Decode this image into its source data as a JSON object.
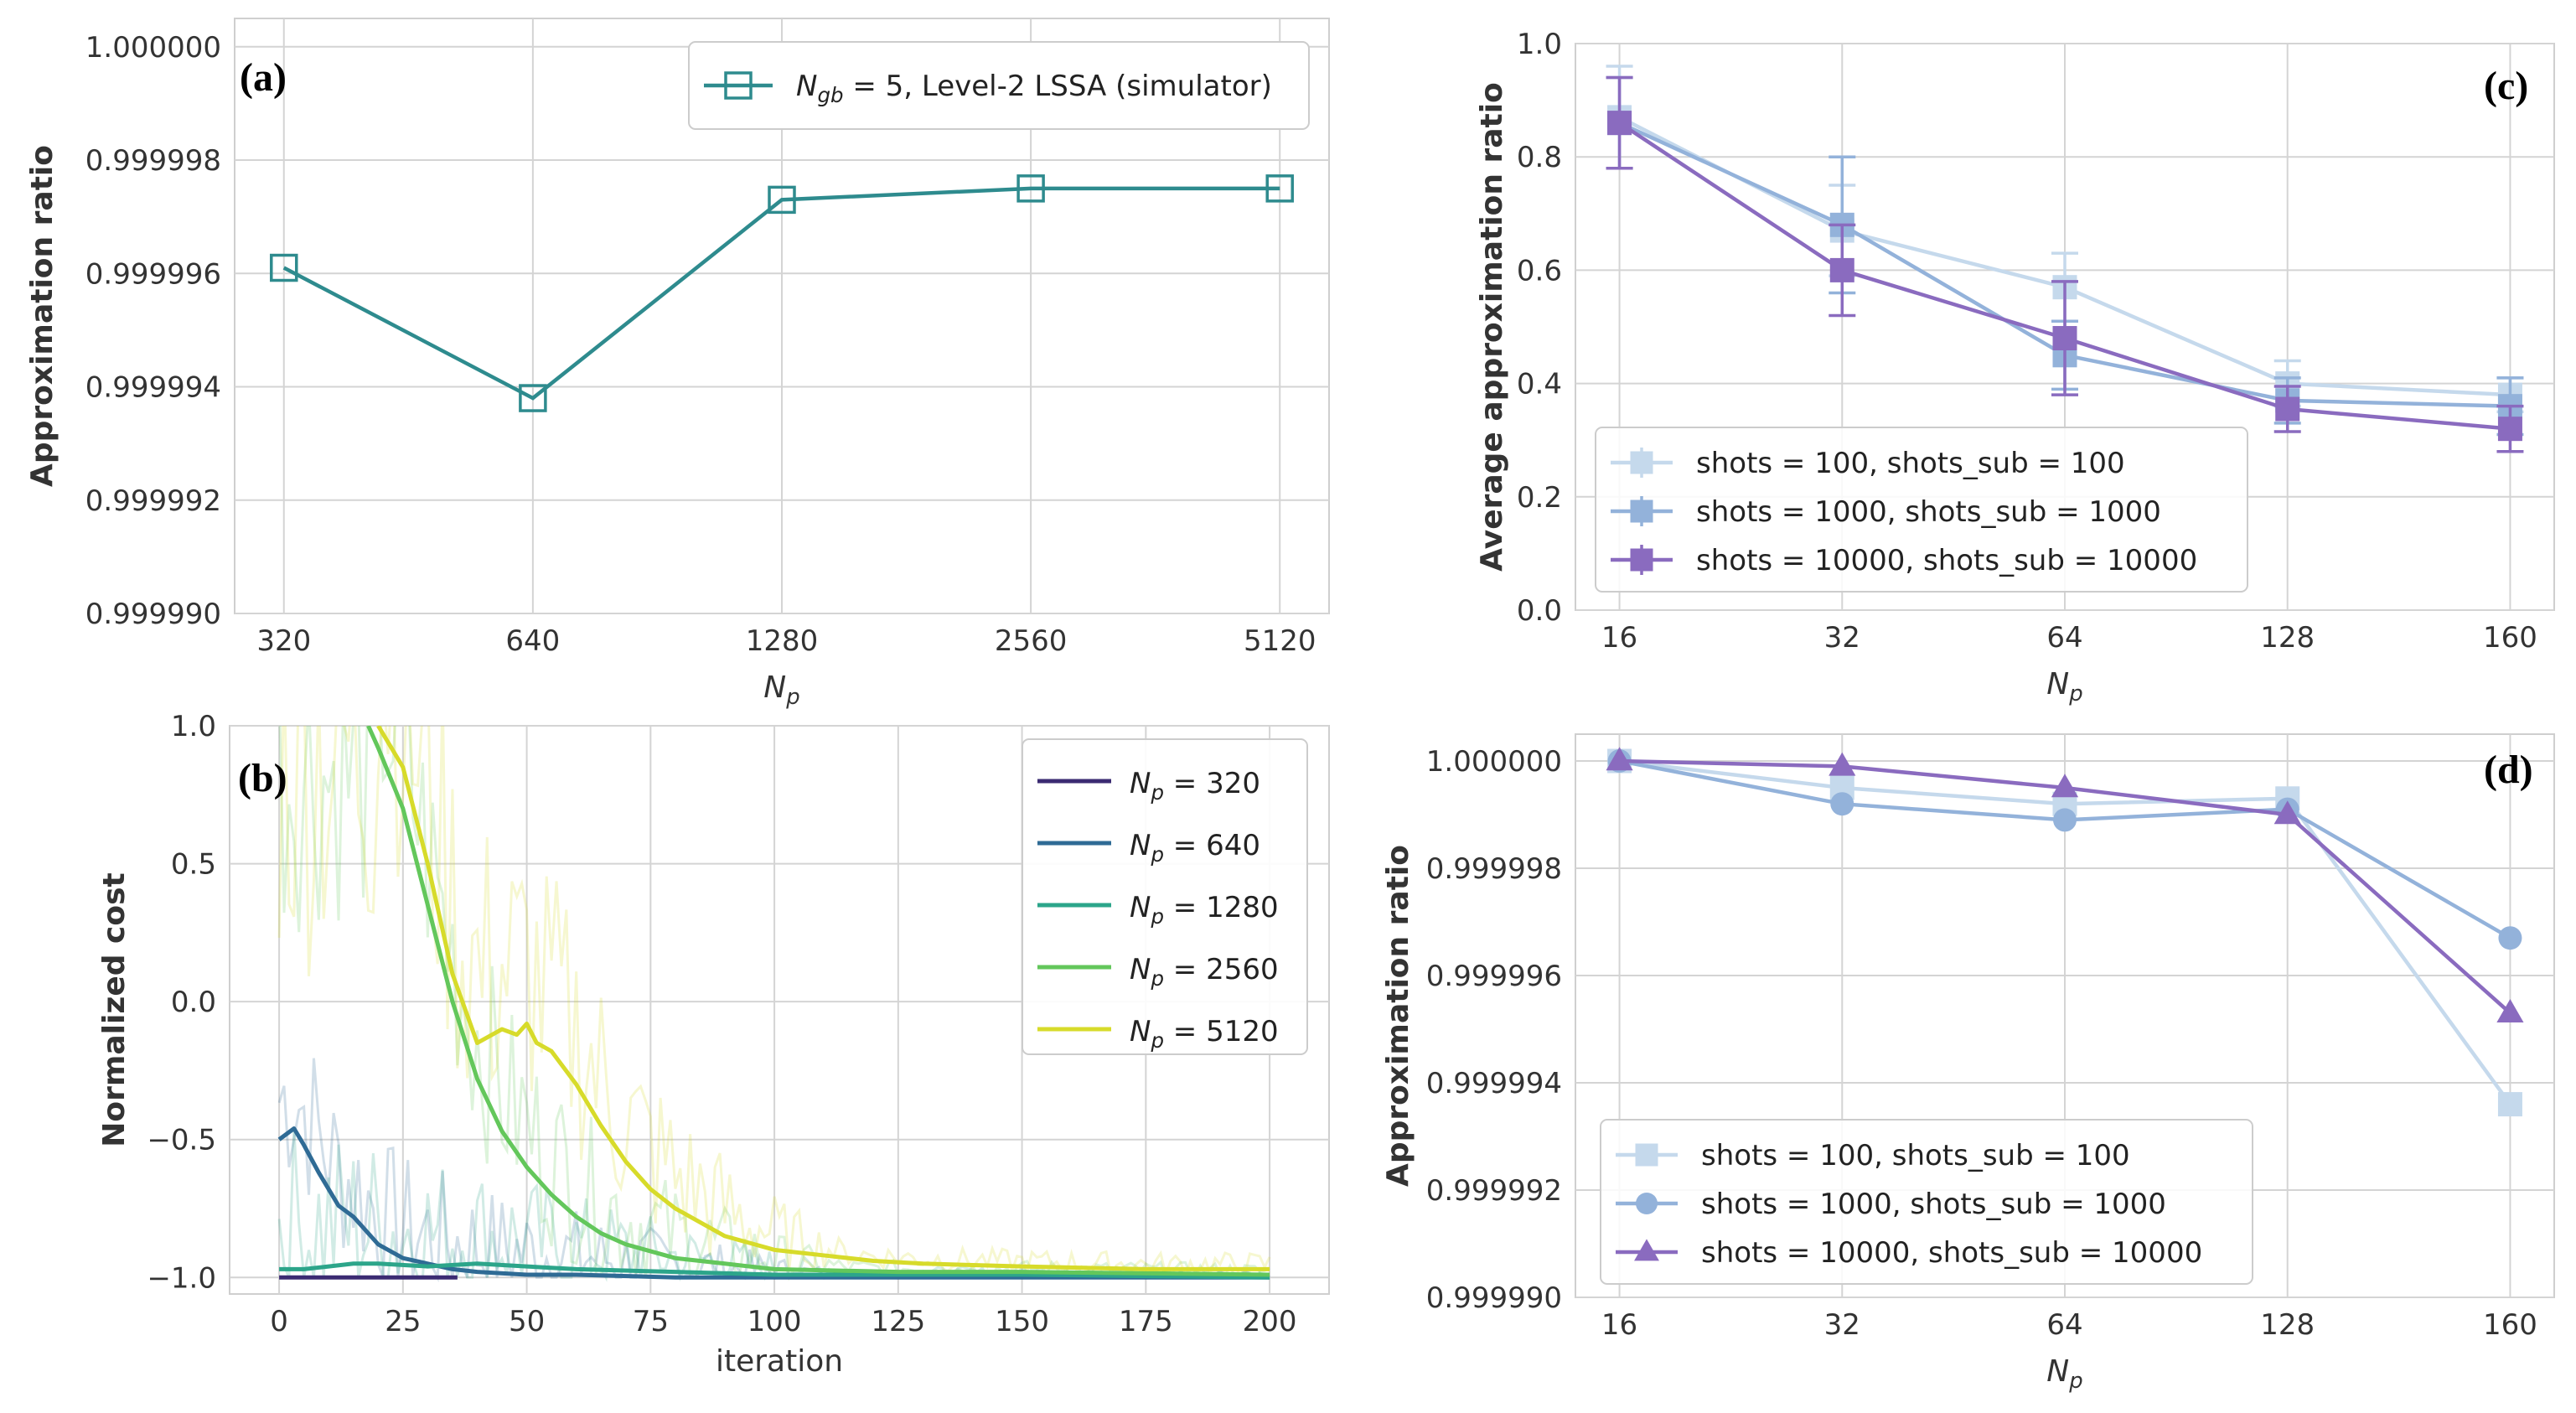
{
  "colors": {
    "grid": "#d4d4d4",
    "axis": "#cfcfcf",
    "teal": "#2e8b8e",
    "light_blue": "#c5d9ec",
    "mid_blue": "#93b2da",
    "purple": "#8a6bbf",
    "np320": "#3b2b72",
    "np640": "#2f6b95",
    "np1280": "#2ca58a",
    "np2560": "#63c75b",
    "np5120": "#d7db2a"
  },
  "chart_data": [
    {
      "id": "a",
      "panel_label": "(a)",
      "type": "line",
      "categories": [
        "320",
        "640",
        "1280",
        "2560",
        "5120"
      ],
      "xlabel": "N",
      "xlabel_sub": "p",
      "ylabel": "Approximation ratio",
      "ylim": [
        0.99999,
        1.0000005
      ],
      "yticks": [
        "1.000000",
        "0.999998",
        "0.999996",
        "0.999994",
        "0.999992",
        "0.999990"
      ],
      "ytick_values": [
        1.0,
        0.999998,
        0.999996,
        0.999994,
        0.999992,
        0.99999
      ],
      "series": [
        {
          "name": "N_gb = 5, Level-2 LSSA (simulator)",
          "legend_main": "N",
          "legend_sub": "gb",
          "legend_rest": " = 5, Level-2 LSSA (simulator)",
          "marker": "square-open",
          "color": "#2e8b8e",
          "values": [
            0.9999961,
            0.9999938,
            0.9999973,
            0.9999975,
            0.9999975
          ]
        }
      ],
      "legend_position": "top-right"
    },
    {
      "id": "b",
      "panel_label": "(b)",
      "type": "line",
      "xlabel": "iteration",
      "ylabel": "Normalized cost",
      "xlim": [
        -10,
        212
      ],
      "ylim": [
        -1.06,
        1.0
      ],
      "xticks": [
        "0",
        "25",
        "50",
        "75",
        "100",
        "125",
        "150",
        "175",
        "200"
      ],
      "xtick_values": [
        0,
        25,
        50,
        75,
        100,
        125,
        150,
        175,
        200
      ],
      "yticks": [
        "1.0",
        "0.5",
        "0.0",
        "−0.5",
        "−1.0"
      ],
      "ytick_values": [
        1.0,
        0.5,
        0.0,
        -0.5,
        -1.0
      ],
      "legend_position": "top-right",
      "series": [
        {
          "name": "N_p = 320",
          "legend_main": "N",
          "legend_sub": "p",
          "legend_rest": " = 320",
          "color": "#3b2b72",
          "x": [
            0,
            10,
            20,
            30,
            36
          ],
          "y": [
            -1.0,
            -1.0,
            -1.0,
            -1.0,
            -1.0
          ]
        },
        {
          "name": "N_p = 640",
          "legend_main": "N",
          "legend_sub": "p",
          "legend_rest": " = 640",
          "color": "#2f6b95",
          "x": [
            0,
            3,
            5,
            8,
            12,
            15,
            20,
            25,
            30,
            35,
            40,
            50,
            60,
            80,
            100,
            150,
            200
          ],
          "y": [
            -0.5,
            -0.46,
            -0.52,
            -0.62,
            -0.74,
            -0.78,
            -0.88,
            -0.93,
            -0.95,
            -0.97,
            -0.98,
            -0.99,
            -0.99,
            -1.0,
            -1.0,
            -1.0,
            -1.0
          ]
        },
        {
          "name": "N_p = 1280",
          "legend_main": "N",
          "legend_sub": "p",
          "legend_rest": " = 1280",
          "color": "#2ca58a",
          "x": [
            0,
            5,
            10,
            15,
            20,
            30,
            40,
            50,
            60,
            80,
            100,
            150,
            200
          ],
          "y": [
            -0.97,
            -0.97,
            -0.96,
            -0.95,
            -0.95,
            -0.96,
            -0.95,
            -0.96,
            -0.97,
            -0.98,
            -0.99,
            -0.99,
            -1.0
          ]
        },
        {
          "name": "N_p = 2560",
          "legend_main": "N",
          "legend_sub": "p",
          "legend_rest": " = 2560",
          "color": "#63c75b",
          "x": [
            18,
            20,
            25,
            30,
            35,
            40,
            45,
            50,
            55,
            60,
            65,
            70,
            80,
            90,
            100,
            125,
            150,
            200
          ],
          "y": [
            1.0,
            0.92,
            0.7,
            0.35,
            0.0,
            -0.28,
            -0.47,
            -0.6,
            -0.7,
            -0.78,
            -0.84,
            -0.88,
            -0.93,
            -0.95,
            -0.97,
            -0.98,
            -0.98,
            -0.99
          ]
        },
        {
          "name": "N_p = 5120",
          "legend_main": "N",
          "legend_sub": "p",
          "legend_rest": " = 5120",
          "color": "#d7db2a",
          "x": [
            20,
            25,
            30,
            35,
            40,
            45,
            48,
            50,
            52,
            55,
            60,
            65,
            70,
            75,
            80,
            90,
            100,
            110,
            120,
            130,
            150,
            175,
            200
          ],
          "y": [
            1.0,
            0.85,
            0.5,
            0.1,
            -0.15,
            -0.1,
            -0.12,
            -0.08,
            -0.15,
            -0.18,
            -0.3,
            -0.45,
            -0.58,
            -0.68,
            -0.75,
            -0.85,
            -0.9,
            -0.92,
            -0.94,
            -0.95,
            -0.96,
            -0.97,
            -0.97
          ]
        }
      ]
    },
    {
      "id": "c",
      "panel_label": "(c)",
      "type": "line",
      "categories": [
        "16",
        "32",
        "64",
        "128",
        "160"
      ],
      "xlabel": "N",
      "xlabel_sub": "p",
      "ylabel": "Average approximation ratio",
      "ylim": [
        0.0,
        1.0
      ],
      "yticks": [
        "1.0",
        "0.8",
        "0.6",
        "0.4",
        "0.2",
        "0.0"
      ],
      "ytick_values": [
        1.0,
        0.8,
        0.6,
        0.4,
        0.2,
        0.0
      ],
      "legend_position": "bottom-left",
      "series": [
        {
          "name": "shots = 100, shots_sub = 100",
          "color": "#c5d9ec",
          "marker": "square",
          "values": [
            0.87,
            0.67,
            0.57,
            0.4,
            0.38
          ],
          "errors": [
            0.09,
            0.08,
            0.06,
            0.04,
            0.03
          ]
        },
        {
          "name": "shots = 1000, shots_sub = 1000",
          "color": "#93b2da",
          "marker": "square",
          "values": [
            0.86,
            0.68,
            0.45,
            0.37,
            0.36
          ],
          "errors": [
            0.08,
            0.12,
            0.06,
            0.04,
            0.05
          ]
        },
        {
          "name": "shots = 10000, shots_sub = 10000",
          "color": "#8a6bbf",
          "marker": "square",
          "values": [
            0.86,
            0.6,
            0.48,
            0.355,
            0.32
          ],
          "errors": [
            0.08,
            0.08,
            0.1,
            0.04,
            0.04
          ]
        }
      ]
    },
    {
      "id": "d",
      "panel_label": "(d)",
      "type": "line",
      "categories": [
        "16",
        "32",
        "64",
        "128",
        "160"
      ],
      "xlabel": "N",
      "xlabel_sub": "p",
      "ylabel": "Approximation ratio",
      "ylim": [
        0.99999,
        1.0000005
      ],
      "yticks": [
        "1.000000",
        "0.999998",
        "0.999996",
        "0.999994",
        "0.999992",
        "0.999990"
      ],
      "ytick_values": [
        1.0,
        0.999998,
        0.999996,
        0.999994,
        0.999992,
        0.99999
      ],
      "legend_position": "bottom-left",
      "series": [
        {
          "name": "shots = 100, shots_sub = 100",
          "color": "#c5d9ec",
          "marker": "square",
          "values": [
            1.0,
            0.9999995,
            0.9999992,
            0.9999993,
            0.9999936
          ]
        },
        {
          "name": "shots = 1000, shots_sub = 1000",
          "color": "#93b2da",
          "marker": "circle",
          "values": [
            1.0,
            0.9999992,
            0.9999989,
            0.9999991,
            0.9999967
          ]
        },
        {
          "name": "shots = 10000, shots_sub = 10000",
          "color": "#8a6bbf",
          "marker": "triangle",
          "values": [
            1.0,
            0.9999999,
            0.9999995,
            0.999999,
            0.9999953
          ]
        }
      ]
    }
  ]
}
